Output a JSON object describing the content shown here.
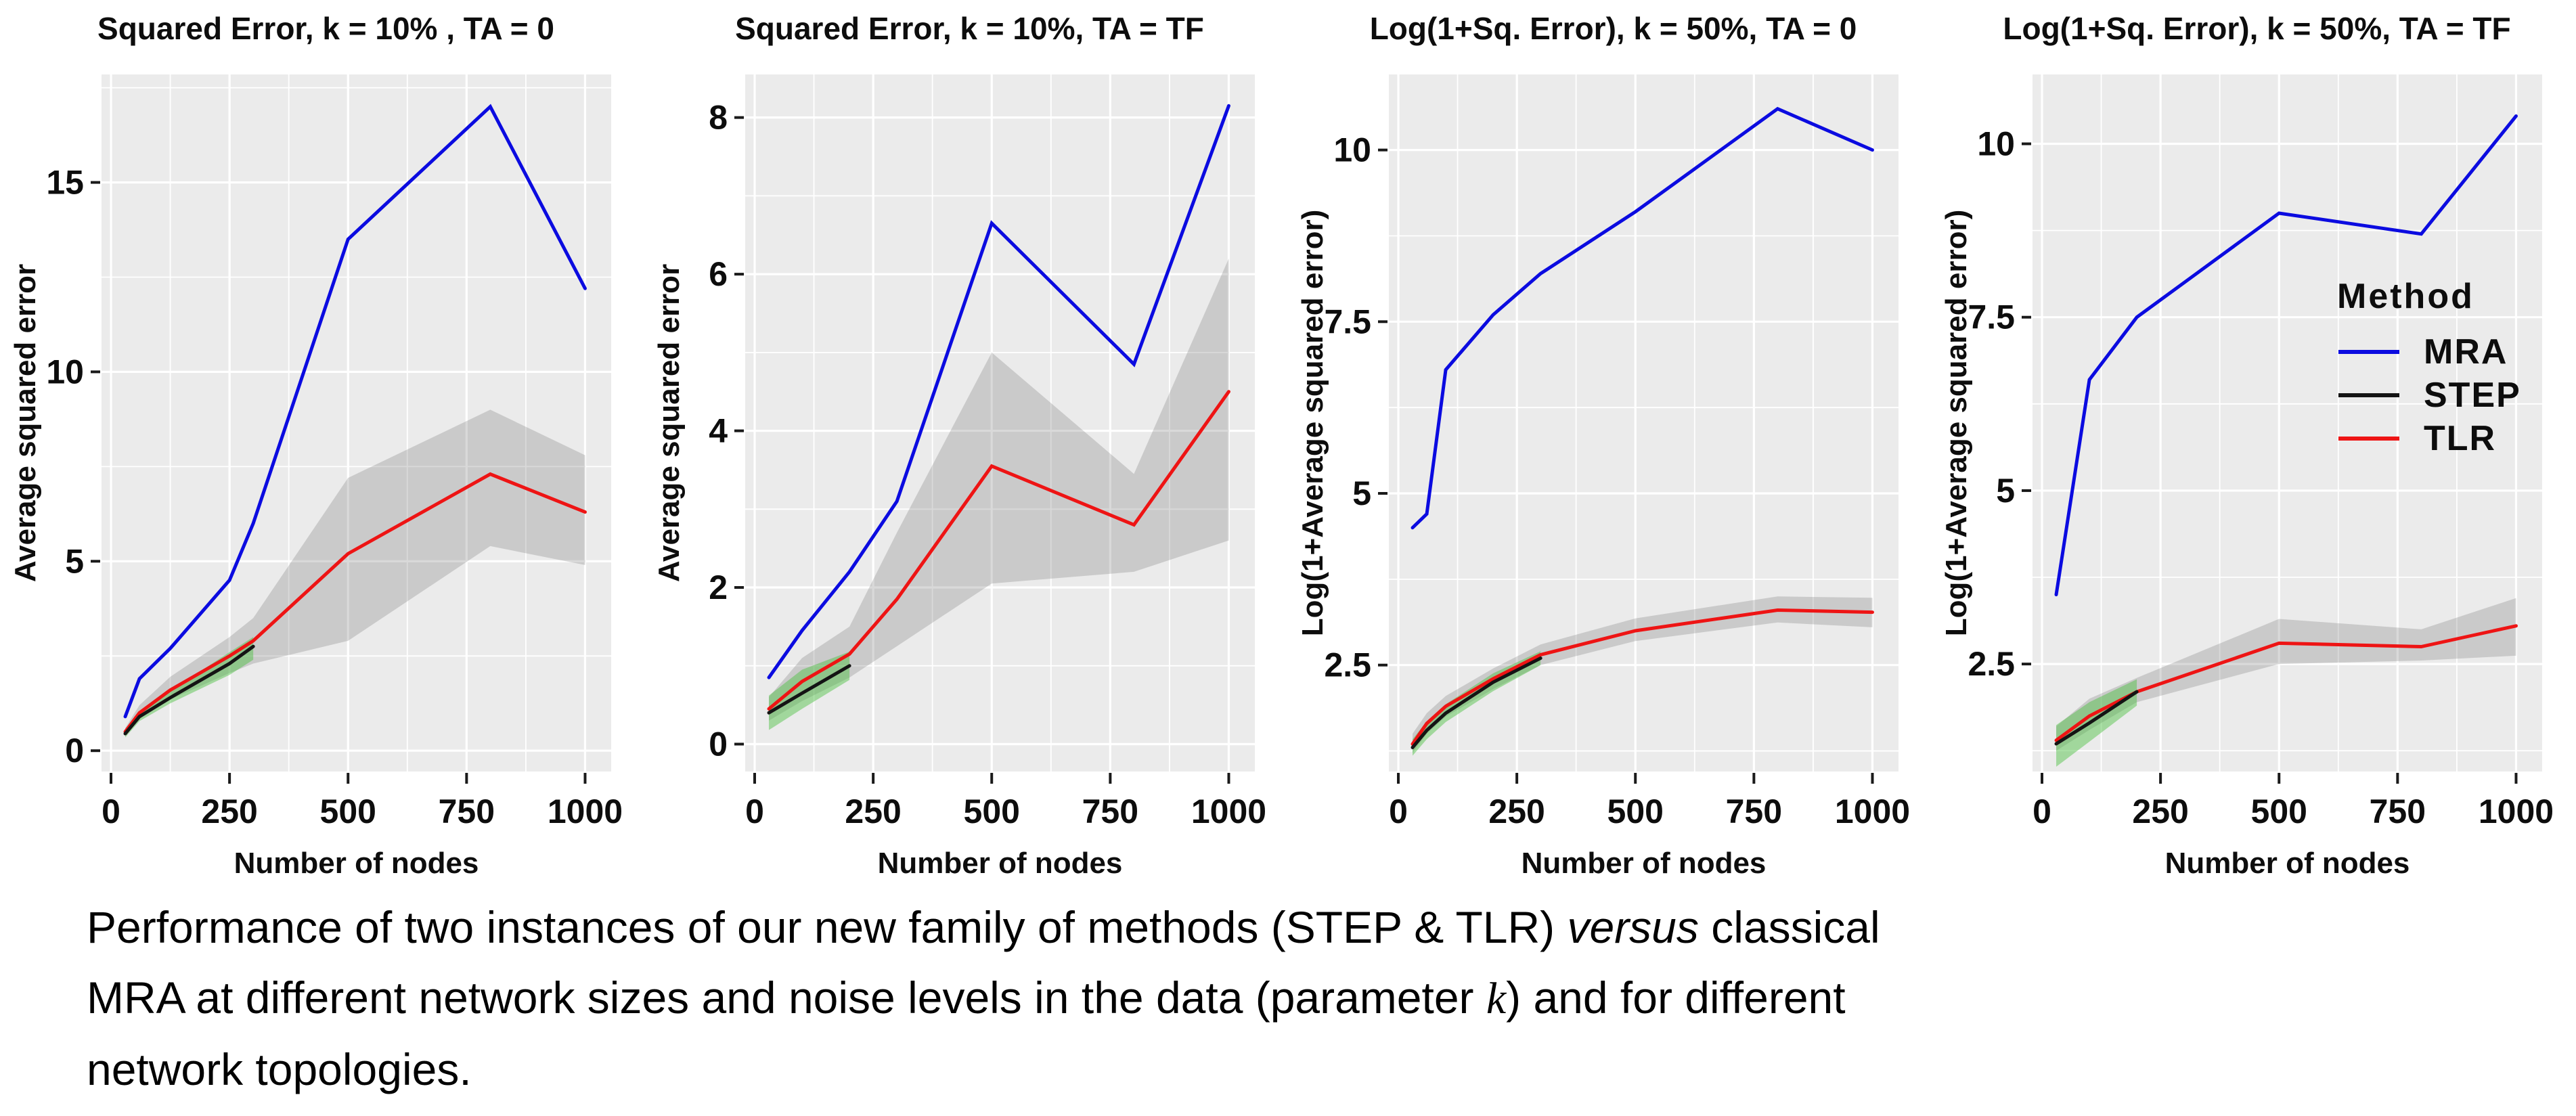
{
  "figure_title": "Method comparison figure",
  "legend": {
    "title": "Method",
    "items": [
      {
        "label": "MRA",
        "color": "#0b0be0"
      },
      {
        "label": "STEP",
        "color": "#141414"
      },
      {
        "label": "TLR",
        "color": "#ee1414"
      }
    ]
  },
  "colors": {
    "panel_background": "#ebebeb",
    "grid": "#ffffff",
    "axis_text": "#0d0d0d",
    "mra_blue": "#0b0be0",
    "step_black": "#141414",
    "tlr_red": "#ee1414",
    "gray_ribbon": "rgba(120,120,120,0.28)",
    "green_ribbon": "rgba(70,190,60,0.45)"
  },
  "chart_data": [
    {
      "type": "line",
      "title": "Squared Error, k = 10% , TA = 0",
      "xlabel": "Number of nodes",
      "ylabel": "Average squared error",
      "xlim": [
        -20,
        1055
      ],
      "ylim": [
        -0.55,
        17.85
      ],
      "xticks": [
        0,
        250,
        500,
        750,
        1000
      ],
      "minor_xticks": [
        125,
        375,
        625,
        875
      ],
      "yticks": [
        0,
        5,
        10,
        15
      ],
      "minor_yticks": [
        2.5,
        7.5,
        12.5,
        17.5
      ],
      "grid": true,
      "legend": false,
      "ribbons": [
        {
          "name": "TLR-ci",
          "colorKey": "gray_ribbon",
          "x": [
            30,
            60,
            125,
            250,
            300,
            500,
            800,
            1000
          ],
          "lower": [
            0.4,
            0.85,
            1.35,
            2.05,
            2.3,
            2.9,
            5.4,
            4.9
          ],
          "upper": [
            0.6,
            1.2,
            1.95,
            3.0,
            3.5,
            7.2,
            9.0,
            7.8
          ]
        },
        {
          "name": "STEP-ci",
          "colorKey": "green_ribbon",
          "x": [
            30,
            60,
            125,
            250,
            300
          ],
          "lower": [
            0.35,
            0.78,
            1.25,
            2.0,
            2.4
          ],
          "upper": [
            0.55,
            1.02,
            1.58,
            2.6,
            3.0
          ]
        }
      ],
      "series": [
        {
          "name": "TLR",
          "colorKey": "tlr_red",
          "points": [
            [
              30,
              0.5
            ],
            [
              60,
              1.0
            ],
            [
              125,
              1.6
            ],
            [
              250,
              2.5
            ],
            [
              300,
              2.9
            ],
            [
              500,
              5.2
            ],
            [
              800,
              7.3
            ],
            [
              1000,
              6.3
            ]
          ]
        },
        {
          "name": "STEP",
          "colorKey": "step_black",
          "points": [
            [
              30,
              0.45
            ],
            [
              60,
              0.9
            ],
            [
              125,
              1.4
            ],
            [
              250,
              2.3
            ],
            [
              300,
              2.75
            ]
          ]
        },
        {
          "name": "MRA",
          "colorKey": "mra_blue",
          "points": [
            [
              30,
              0.9
            ],
            [
              60,
              1.9
            ],
            [
              125,
              2.7
            ],
            [
              250,
              4.5
            ],
            [
              300,
              6.0
            ],
            [
              500,
              13.5
            ],
            [
              800,
              17.0
            ],
            [
              1000,
              12.2
            ]
          ]
        }
      ]
    },
    {
      "type": "line",
      "title": "Squared Error, k = 10%, TA = TF",
      "xlabel": "Number of nodes",
      "ylabel": "Average squared error",
      "xlim": [
        -20,
        1055
      ],
      "ylim": [
        -0.35,
        8.55
      ],
      "xticks": [
        0,
        250,
        500,
        750,
        1000
      ],
      "minor_xticks": [
        125,
        375,
        625,
        875
      ],
      "yticks": [
        0,
        2,
        4,
        6,
        8
      ],
      "minor_yticks": [
        1,
        3,
        5,
        7
      ],
      "grid": true,
      "legend": false,
      "ribbons": [
        {
          "name": "TLR-ci",
          "colorKey": "gray_ribbon",
          "x": [
            30,
            100,
            200,
            300,
            500,
            800,
            1000
          ],
          "lower": [
            0.3,
            0.55,
            0.85,
            1.25,
            2.05,
            2.2,
            2.6
          ],
          "upper": [
            0.6,
            1.1,
            1.5,
            2.7,
            5.0,
            3.45,
            6.2
          ]
        },
        {
          "name": "STEP-ci",
          "colorKey": "green_ribbon",
          "x": [
            30,
            100,
            200
          ],
          "lower": [
            0.18,
            0.45,
            0.82
          ],
          "upper": [
            0.62,
            0.95,
            1.18
          ]
        }
      ],
      "series": [
        {
          "name": "TLR",
          "colorKey": "tlr_red",
          "points": [
            [
              30,
              0.45
            ],
            [
              100,
              0.8
            ],
            [
              200,
              1.15
            ],
            [
              300,
              1.85
            ],
            [
              500,
              3.55
            ],
            [
              800,
              2.8
            ],
            [
              1000,
              4.5
            ]
          ]
        },
        {
          "name": "STEP",
          "colorKey": "step_black",
          "points": [
            [
              30,
              0.4
            ],
            [
              100,
              0.65
            ],
            [
              200,
              1.0
            ]
          ]
        },
        {
          "name": "MRA",
          "colorKey": "mra_blue",
          "points": [
            [
              30,
              0.85
            ],
            [
              100,
              1.45
            ],
            [
              200,
              2.2
            ],
            [
              300,
              3.1
            ],
            [
              500,
              6.65
            ],
            [
              800,
              4.85
            ],
            [
              1000,
              8.15
            ]
          ]
        }
      ]
    },
    {
      "type": "line",
      "title": "Log(1+Sq. Error), k = 50%, TA = 0",
      "xlabel": "Number of nodes",
      "ylabel": "Log(1+Average squared error)",
      "xlim": [
        -20,
        1055
      ],
      "ylim": [
        0.95,
        11.1
      ],
      "xticks": [
        0,
        250,
        500,
        750,
        1000
      ],
      "minor_xticks": [
        125,
        375,
        625,
        875
      ],
      "yticks": [
        2.5,
        5,
        7.5,
        10
      ],
      "minor_yticks": [
        1.25,
        3.75,
        6.25,
        8.75
      ],
      "grid": true,
      "legend": false,
      "ribbons": [
        {
          "name": "TLR-ci",
          "colorKey": "gray_ribbon",
          "x": [
            30,
            60,
            100,
            200,
            300,
            500,
            800,
            1000
          ],
          "lower": [
            1.22,
            1.5,
            1.75,
            2.15,
            2.5,
            2.85,
            3.12,
            3.05
          ],
          "upper": [
            1.5,
            1.8,
            2.05,
            2.45,
            2.8,
            3.18,
            3.5,
            3.48
          ]
        },
        {
          "name": "STEP-ci",
          "colorKey": "green_ribbon",
          "x": [
            30,
            60,
            100,
            200,
            300
          ],
          "lower": [
            1.18,
            1.42,
            1.67,
            2.12,
            2.5
          ],
          "upper": [
            1.42,
            1.68,
            1.93,
            2.38,
            2.7
          ]
        }
      ],
      "series": [
        {
          "name": "TLR",
          "colorKey": "tlr_red",
          "points": [
            [
              30,
              1.35
            ],
            [
              60,
              1.65
            ],
            [
              100,
              1.9
            ],
            [
              200,
              2.3
            ],
            [
              300,
              2.65
            ],
            [
              500,
              3.0
            ],
            [
              800,
              3.3
            ],
            [
              1000,
              3.27
            ]
          ]
        },
        {
          "name": "STEP",
          "colorKey": "step_black",
          "points": [
            [
              30,
              1.3
            ],
            [
              60,
              1.55
            ],
            [
              100,
              1.8
            ],
            [
              200,
              2.25
            ],
            [
              300,
              2.6
            ]
          ]
        },
        {
          "name": "MRA",
          "colorKey": "mra_blue",
          "points": [
            [
              30,
              4.5
            ],
            [
              60,
              4.7
            ],
            [
              100,
              6.8
            ],
            [
              200,
              7.6
            ],
            [
              300,
              8.2
            ],
            [
              500,
              9.1
            ],
            [
              800,
              10.6
            ],
            [
              1000,
              10.0
            ]
          ]
        }
      ]
    },
    {
      "type": "line",
      "title": "Log(1+Sq. Error), k = 50%, TA = TF",
      "xlabel": "Number of nodes",
      "ylabel": "Log(1+Average squared error)",
      "xlim": [
        -20,
        1055
      ],
      "ylim": [
        0.95,
        11.0
      ],
      "xticks": [
        0,
        250,
        500,
        750,
        1000
      ],
      "minor_xticks": [
        125,
        375,
        625,
        875
      ],
      "yticks": [
        2.5,
        5,
        7.5,
        10
      ],
      "minor_yticks": [
        1.25,
        3.75,
        6.25,
        8.75
      ],
      "grid": true,
      "legend": true,
      "legend_position": "right-center-inside",
      "ribbons": [
        {
          "name": "TLR-ci",
          "colorKey": "gray_ribbon",
          "x": [
            30,
            100,
            200,
            500,
            800,
            1000
          ],
          "lower": [
            1.25,
            1.55,
            1.95,
            2.5,
            2.55,
            2.62
          ],
          "upper": [
            1.6,
            2.0,
            2.3,
            3.15,
            3.0,
            3.45
          ]
        },
        {
          "name": "STEP-ci",
          "colorKey": "green_ribbon",
          "x": [
            30,
            100,
            200
          ],
          "lower": [
            1.02,
            1.38,
            1.9
          ],
          "upper": [
            1.62,
            1.95,
            2.28
          ]
        }
      ],
      "series": [
        {
          "name": "TLR",
          "colorKey": "tlr_red",
          "points": [
            [
              30,
              1.4
            ],
            [
              100,
              1.75
            ],
            [
              200,
              2.1
            ],
            [
              500,
              2.8
            ],
            [
              800,
              2.75
            ],
            [
              1000,
              3.05
            ]
          ]
        },
        {
          "name": "STEP",
          "colorKey": "step_black",
          "points": [
            [
              30,
              1.35
            ],
            [
              100,
              1.65
            ],
            [
              200,
              2.1
            ]
          ]
        },
        {
          "name": "MRA",
          "colorKey": "mra_blue",
          "points": [
            [
              30,
              3.5
            ],
            [
              100,
              6.6
            ],
            [
              200,
              7.5
            ],
            [
              300,
              8.0
            ],
            [
              500,
              9.0
            ],
            [
              800,
              8.7
            ],
            [
              1000,
              10.4
            ]
          ]
        }
      ]
    }
  ],
  "caption": {
    "lines": [
      [
        {
          "text": "Performance of two instances of our new family of methods (STEP & TLR) ",
          "style": "normal"
        },
        {
          "text": "versus",
          "style": "italic"
        },
        {
          "text": " classical",
          "style": "normal"
        }
      ],
      [
        {
          "text": "MRA at different network sizes and noise levels in the data (parameter ",
          "style": "normal"
        },
        {
          "text": "k",
          "style": "mathit"
        },
        {
          "text": ") and for different",
          "style": "normal"
        }
      ],
      [
        {
          "text": "network topologies.",
          "style": "normal"
        }
      ]
    ]
  }
}
